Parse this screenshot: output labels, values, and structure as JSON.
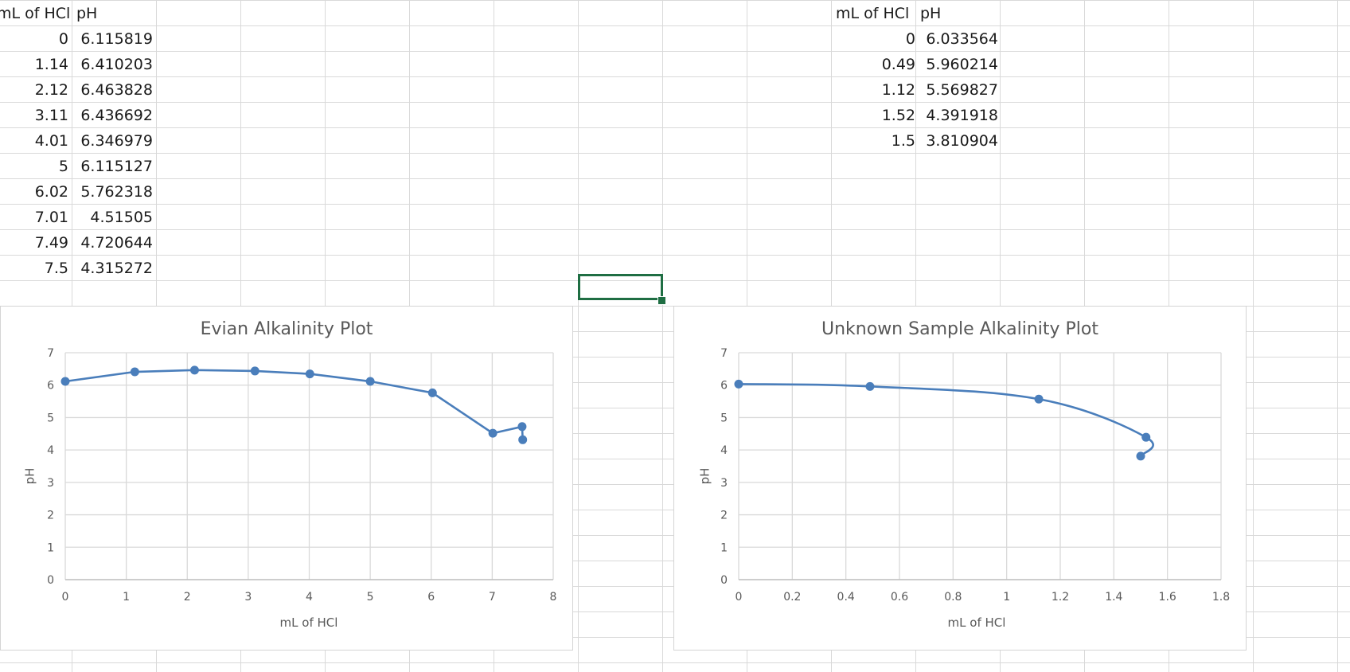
{
  "sheet": {
    "left_table": {
      "headers": [
        "mL of HCl",
        "pH"
      ],
      "rows": [
        [
          "0",
          "6.115819"
        ],
        [
          "1.14",
          "6.410203"
        ],
        [
          "2.12",
          "6.463828"
        ],
        [
          "3.11",
          "6.436692"
        ],
        [
          "4.01",
          "6.346979"
        ],
        [
          "5",
          "6.115127"
        ],
        [
          "6.02",
          "5.762318"
        ],
        [
          "7.01",
          "4.51505"
        ],
        [
          "7.49",
          "4.720644"
        ],
        [
          "7.5",
          "4.315272"
        ]
      ]
    },
    "right_table": {
      "headers": [
        "mL of HCl",
        "pH"
      ],
      "rows": [
        [
          "0",
          "6.033564"
        ],
        [
          "0.49",
          "5.960214"
        ],
        [
          "1.12",
          "5.569827"
        ],
        [
          "1.52",
          "4.391918"
        ],
        [
          "1.5",
          "3.810904"
        ]
      ]
    }
  },
  "chart_data": [
    {
      "type": "scatter",
      "title": "Evian Alkalinity Plot",
      "xlabel": "mL of HCl",
      "ylabel": "pH",
      "xlim": [
        0,
        8
      ],
      "ylim": [
        0,
        7
      ],
      "xticks": [
        "0",
        "1",
        "2",
        "3",
        "4",
        "5",
        "6",
        "7",
        "8"
      ],
      "yticks": [
        "0",
        "1",
        "2",
        "3",
        "4",
        "5",
        "6",
        "7"
      ],
      "grid": true,
      "line": "straight",
      "color": "#4a7ebb",
      "series": [
        {
          "x": [
            0,
            1.14,
            2.12,
            3.11,
            4.01,
            5,
            6.02,
            7.01,
            7.49,
            7.5
          ],
          "y": [
            6.115819,
            6.410203,
            6.463828,
            6.436692,
            6.346979,
            6.115127,
            5.762318,
            4.51505,
            4.720644,
            4.315272
          ]
        }
      ]
    },
    {
      "type": "scatter",
      "title": "Unknown Sample Alkalinity Plot",
      "xlabel": "mL of HCl",
      "ylabel": "pH",
      "xlim": [
        0,
        1.8
      ],
      "ylim": [
        0,
        7
      ],
      "xticks": [
        "0",
        "0.2",
        "0.4",
        "0.6",
        "0.8",
        "1",
        "1.2",
        "1.4",
        "1.6",
        "1.8"
      ],
      "yticks": [
        "0",
        "1",
        "2",
        "3",
        "4",
        "5",
        "6",
        "7"
      ],
      "grid": true,
      "line": "smooth",
      "color": "#4a7ebb",
      "series": [
        {
          "x": [
            0,
            0.49,
            1.12,
            1.52,
            1.5
          ],
          "y": [
            6.033564,
            5.960214,
            5.569827,
            4.391918,
            3.810904
          ]
        }
      ]
    }
  ]
}
